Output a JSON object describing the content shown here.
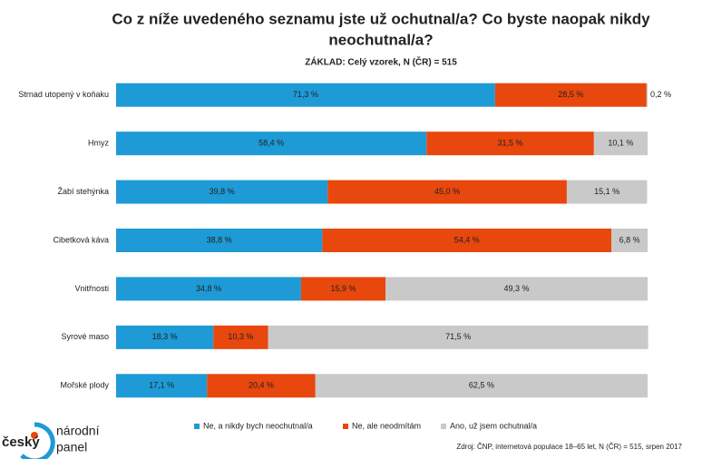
{
  "chart_data": {
    "type": "stacked-barh",
    "title": [
      "Co z níže uvedeného seznamu jste už ochutnal/a? Co byste naopak nikdy",
      "neochutnal/a?"
    ],
    "subtitle": "ZÁKLAD: Celý vzorek, N (ČR) = 515",
    "categories": [
      "Strnad utopený v koňaku",
      "Hmyz",
      "Žabí stehýnka",
      "Cibetková káva",
      "Vnitřnosti",
      "Syrové maso",
      "Mořské plody"
    ],
    "xlim": [
      0,
      100
    ],
    "series": [
      {
        "name": "Ne, a nikdy bych neochutnal/a",
        "color": "#1e9ad6",
        "values": [
          71.3,
          58.4,
          39.8,
          38.8,
          34.8,
          18.3,
          17.1
        ],
        "value_labels": [
          "71,3 %",
          "58,4 %",
          "39,8 %",
          "38,8 %",
          "34,8 %",
          "18,3 %",
          "17,1 %"
        ]
      },
      {
        "name": "Ne, ale neodmítám",
        "color": "#e8470e",
        "values": [
          28.5,
          31.5,
          45.0,
          54.4,
          15.9,
          10.3,
          20.4
        ],
        "value_labels": [
          "28,5 %",
          "31,5 %",
          "45,0 %",
          "54,4 %",
          "15,9 %",
          "10,3 %",
          "20,4 %"
        ]
      },
      {
        "name": "Ano, už jsem ochutnal/a",
        "color": "#c9c9c9",
        "values": [
          0.2,
          10.1,
          15.1,
          6.8,
          49.3,
          71.5,
          62.5
        ],
        "value_labels": [
          "0,2 %",
          "10,1 %",
          "15,1 %",
          "6,8 %",
          "49,3 %",
          "71,5 %",
          "62,5 %"
        ]
      }
    ],
    "source": "Zdroj: ČNP, internetová populace 18–65 let, N (ČR) = 515, srpen 2017"
  },
  "logo": {
    "brand": "český",
    "line1": "národní",
    "line2": "panel"
  }
}
